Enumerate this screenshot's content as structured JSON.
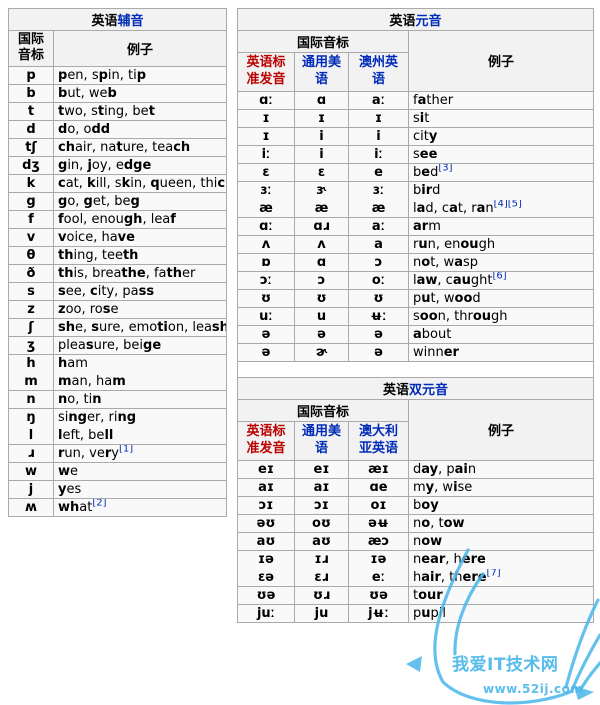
{
  "colors": {
    "link_blue": "#002bb8",
    "link_red": "#ba0000",
    "border_gray": "#aaaaaa",
    "header_bg": "#f2f2f2",
    "body_bg": "#f9f9f9",
    "watermark_blue": "#4ab7ea"
  },
  "consonants": {
    "title_prefix": "英语",
    "title_link": "辅音",
    "header_ipa": "国际\n音标",
    "header_examples": "例子",
    "rows": [
      {
        "ipa": "p",
        "ex": "<b>p</b>en, s<b>p</b>in, ti<b>p</b>"
      },
      {
        "ipa": "b",
        "ex": "<b>b</b>ut, we<b>b</b>"
      },
      {
        "ipa": "t",
        "ex": "<b>t</b>wo, s<b>t</b>ing, be<b>t</b>"
      },
      {
        "ipa": "d",
        "ex": "<b>d</b>o, o<b>dd</b>"
      },
      {
        "ipa": "tʃ",
        "ex": "<b>ch</b>air, na<b>t</b>ure, tea<b>ch</b>"
      },
      {
        "ipa": "dʒ",
        "ex": "<b>g</b>in, <b>j</b>oy, e<b>dge</b>"
      },
      {
        "ipa": "k",
        "ex": "<b>c</b>at, <b>k</b>ill, s<b>k</b>in, <b>q</b>ueen, thi<b>ck</b>"
      },
      {
        "ipa": "g",
        "ex": "<b>g</b>o, <b>g</b>et, be<b>g</b>"
      },
      {
        "ipa": "f",
        "ex": "<b>f</b>ool, enou<b>gh</b>, lea<b>f</b>"
      },
      {
        "ipa": "v",
        "ex": "<b>v</b>oice, ha<b>ve</b>"
      },
      {
        "ipa": "θ",
        "ex": "<b>th</b>ing, tee<b>th</b>"
      },
      {
        "ipa": "ð",
        "ex": "<b>th</b>is, brea<b>the</b>, fa<b>th</b>er"
      },
      {
        "ipa": "s",
        "ex": "<b>s</b>ee, <b>c</b>ity, pa<b>ss</b>"
      },
      {
        "ipa": "z",
        "ex": "<b>z</b>oo, ro<b>s</b>e"
      },
      {
        "ipa": "ʃ",
        "ex": "<b>sh</b>e, <b>s</b>ure, emo<b>ti</b>on, lea<b>sh</b>"
      },
      {
        "ipa": "ʒ",
        "ex": "plea<b>s</b>ure, bei<b>ge</b>"
      },
      {
        "ipa": "h",
        "ex": "<b>h</b>am",
        "g": true
      },
      {
        "ipa": "m",
        "ex": "<b>m</b>an, ha<b>m</b>"
      },
      {
        "ipa": "n",
        "ex": "<b>n</b>o, ti<b>n</b>"
      },
      {
        "ipa": "ŋ",
        "ex": "si<b>ng</b>er, ri<b>ng</b>",
        "g": true
      },
      {
        "ipa": "l",
        "ex": "<b>l</b>eft, be<b>ll</b>"
      },
      {
        "ipa": "ɹ",
        "ex": "<b>r</b>un, ve<b>r</b>y",
        "ref": "[1]"
      },
      {
        "ipa": "w",
        "ex": "<b>w</b>e"
      },
      {
        "ipa": "j",
        "ex": "<b>y</b>es"
      },
      {
        "ipa": "ʍ",
        "ex": "<b>wh</b>at",
        "ref": "[2]"
      }
    ]
  },
  "vowels": {
    "title_prefix": "英语",
    "title_link": "元音",
    "header_ipa_group": "国际音标",
    "header_examples": "例子",
    "accents": [
      {
        "label": "英语标\n准发音"
      },
      {
        "label": "通用美\n语"
      },
      {
        "label": "澳州英\n语"
      }
    ],
    "rows": [
      {
        "ipas": [
          "ɑː",
          "ɑ",
          "aː"
        ],
        "ex": "f<b>a</b>ther"
      },
      {
        "ipas": [
          "ɪ",
          "ɪ",
          "ɪ"
        ],
        "ex": "s<b>i</b>t"
      },
      {
        "ipas": [
          "ɪ",
          "i",
          "i"
        ],
        "ex": "cit<b>y</b>"
      },
      {
        "ipas": [
          "iː",
          "i",
          "iː"
        ],
        "ex": "s<b>ee</b>"
      },
      {
        "ipas": [
          "ɛ",
          "ɛ",
          "e"
        ],
        "ex": "b<b>e</b>d",
        "ref": "[3]"
      },
      {
        "ipas": [
          "ɜː",
          "ɝ",
          "ɜː"
        ],
        "ex": "b<b>ir</b>d",
        "g": true
      },
      {
        "ipas": [
          "æ",
          "æ",
          "æ"
        ],
        "ex": "l<b>a</b>d, c<b>a</b>t, r<b>a</b>n",
        "ref": "[4][5]"
      },
      {
        "ipas": [
          "ɑː",
          "ɑɹ",
          "aː"
        ],
        "ex": "<b>ar</b>m"
      },
      {
        "ipas": [
          "ʌ",
          "ʌ",
          "a"
        ],
        "ex": "r<b>u</b>n, en<b>ou</b>gh"
      },
      {
        "ipas": [
          "ɒ",
          "ɑ",
          "ɔ"
        ],
        "ex": "n<b>o</b>t, w<b>a</b>sp"
      },
      {
        "ipas": [
          "ɔː",
          "ɔ",
          "oː"
        ],
        "ex": "l<b>aw</b>, c<b>au</b>ght",
        "ref": "[6]"
      },
      {
        "ipas": [
          "ʊ",
          "ʊ",
          "ʊ"
        ],
        "ex": "p<b>u</b>t, w<b>oo</b>d"
      },
      {
        "ipas": [
          "uː",
          "u",
          "ʉː"
        ],
        "ex": "s<b>oo</b>n, thr<b>ou</b>gh"
      },
      {
        "ipas": [
          "ə",
          "ə",
          "ə"
        ],
        "ex": "<b>a</b>bout"
      },
      {
        "ipas": [
          "ə",
          "ɚ",
          "ə"
        ],
        "ex": "winn<b>er</b>"
      }
    ]
  },
  "diphthongs": {
    "title_prefix": "英语",
    "title_link": "双元音",
    "header_ipa_group": "国际音标",
    "header_examples": "例子",
    "accents": [
      {
        "label": "英语标\n准发音"
      },
      {
        "label": "通用美\n语"
      },
      {
        "label": "澳大利\n亚英语"
      }
    ],
    "rows": [
      {
        "ipas": [
          "eɪ",
          "eɪ",
          "æɪ"
        ],
        "ex": "d<b>ay</b>, p<b>ai</b>n"
      },
      {
        "ipas": [
          "aɪ",
          "aɪ",
          "ɑe"
        ],
        "ex": "m<b>y</b>, w<b>i</b>se"
      },
      {
        "ipas": [
          "ɔɪ",
          "ɔɪ",
          "oɪ"
        ],
        "ex": "b<b>oy</b>"
      },
      {
        "ipas": [
          "əʊ",
          "oʊ",
          "əʉ"
        ],
        "ex": "n<b>o</b>, t<b>ow</b>"
      },
      {
        "ipas": [
          "aʊ",
          "aʊ",
          "æɔ"
        ],
        "ex": "n<b>ow</b>"
      },
      {
        "ipas": [
          "ɪə",
          "ɪɹ",
          "ɪə"
        ],
        "ex": "n<b>ear</b>, h<b>ere</b>",
        "g": true
      },
      {
        "ipas": [
          "ɛə",
          "ɛɹ",
          "eː"
        ],
        "ex": "h<b>air</b>, th<b>ere</b>",
        "ref": "[7]"
      },
      {
        "ipas": [
          "ʊə",
          "ʊɹ",
          "ʊə"
        ],
        "ex": "t<b>our</b>"
      },
      {
        "ipas": [
          "juː",
          "ju",
          "jʉː"
        ],
        "ex": "p<b>u</b>pil"
      }
    ]
  },
  "watermark": {
    "title": "我爱IT技术网",
    "url": "www.52ij.com"
  }
}
